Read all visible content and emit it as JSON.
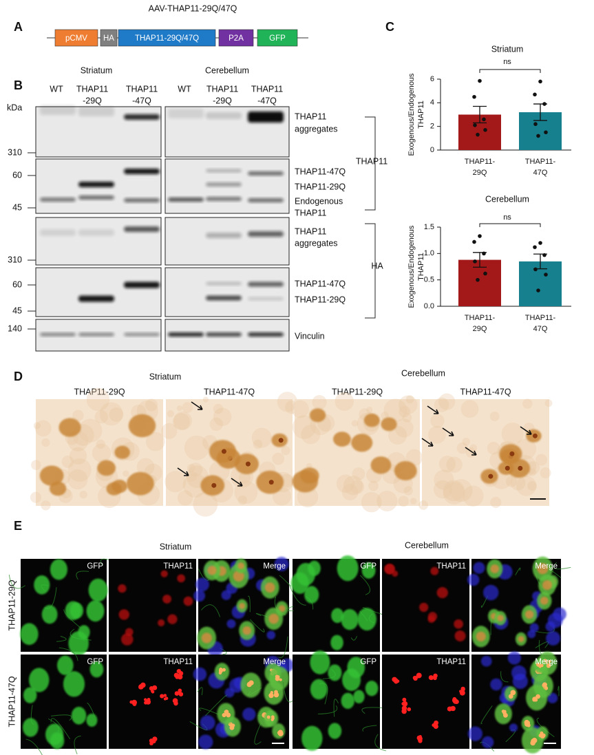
{
  "panel_labels": [
    "A",
    "B",
    "C",
    "D",
    "E"
  ],
  "construct": {
    "title": "AAV-THAP11-29Q/47Q",
    "segments": [
      "pCMV",
      "HA",
      "THAP11-29Q/47Q",
      "P2A",
      "GFP"
    ]
  },
  "blot": {
    "regions": [
      "Striatum",
      "Cerebellum"
    ],
    "unit": "kDa",
    "lanes": [
      [
        "WT"
      ],
      [
        "THAP11",
        "-29Q"
      ],
      [
        "THAP11",
        "-47Q"
      ],
      [
        "WT"
      ],
      [
        "THAP11",
        "-29Q"
      ],
      [
        "THAP11",
        "-47Q"
      ]
    ],
    "markers": [
      310,
      60,
      45,
      310,
      60,
      45,
      140
    ],
    "band_labels": [
      [
        "THAP11",
        "aggregates"
      ],
      [
        "THAP11-47Q"
      ],
      [
        "THAP11-29Q"
      ],
      [
        "Endogenous",
        "THAP11"
      ],
      [
        "THAP11",
        "aggregates"
      ],
      [
        "THAP11-47Q"
      ],
      [
        "THAP11-29Q"
      ],
      [
        "Vinculin"
      ]
    ],
    "antibodies": [
      "THAP11",
      "HA"
    ]
  },
  "chart_data": [
    {
      "type": "bar",
      "title": "Striatum",
      "ylabel": [
        "Exogenous/Endogenous",
        "THAP11"
      ],
      "categories": [
        [
          "THAP11-",
          "29Q"
        ],
        [
          "THAP11-",
          "47Q"
        ]
      ],
      "values": [
        3.0,
        3.2
      ],
      "errors": [
        0.7,
        0.7
      ],
      "points": [
        [
          5.85,
          4.5,
          2.6,
          2.1,
          1.7,
          1.3
        ],
        [
          5.8,
          4.7,
          3.9,
          2.2,
          1.5,
          1.2
        ]
      ],
      "colors": [
        "#a31818",
        "#16808f"
      ],
      "ylim": [
        0,
        6
      ],
      "yticks": [
        0,
        2,
        4,
        6
      ],
      "annotation": "ns"
    },
    {
      "type": "bar",
      "title": "Cerebellum",
      "ylabel": [
        "Exogenous/Endogenous",
        "THAP11"
      ],
      "categories": [
        [
          "THAP11-",
          "29Q"
        ],
        [
          "THAP11-",
          "47Q"
        ]
      ],
      "values": [
        0.88,
        0.85
      ],
      "errors": [
        0.14,
        0.14
      ],
      "points": [
        [
          1.33,
          1.22,
          1.0,
          0.85,
          0.62,
          0.5
        ],
        [
          1.2,
          1.12,
          0.97,
          0.7,
          0.6,
          0.3
        ]
      ],
      "colors": [
        "#a31818",
        "#16808f"
      ],
      "ylim": [
        0,
        1.5
      ],
      "yticks": [
        {
          "value": 0,
          "label": "0.0"
        },
        0.5,
        {
          "value": 1,
          "label": "1.0"
        },
        1.5
      ],
      "annotation": "ns"
    }
  ],
  "ihc": {
    "regions": [
      "Striatum",
      "Cerebellum"
    ],
    "conditions": [
      "THAP11-29Q",
      "THAP11-47Q",
      "THAP11-29Q",
      "THAP11-47Q"
    ]
  },
  "if": {
    "regions": [
      "Striatum",
      "Cerebellum"
    ],
    "rows": [
      "THAP11-29Q",
      "THAP11-47Q"
    ],
    "channels": [
      "GFP",
      "THAP11",
      "Merge"
    ]
  }
}
